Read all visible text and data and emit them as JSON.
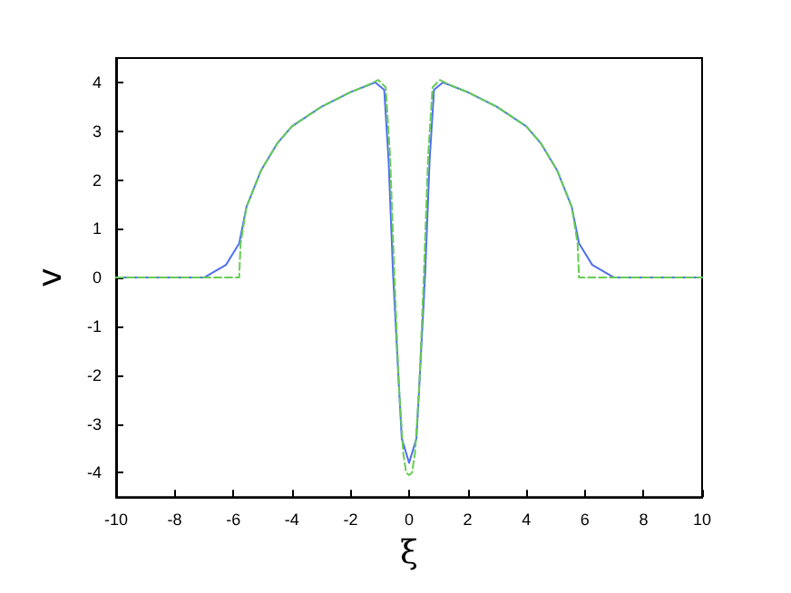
{
  "chart_data": {
    "type": "line",
    "xlabel": "ξ",
    "ylabel": "v",
    "xlim": [
      -10,
      10
    ],
    "xticks": [
      -10,
      -8,
      -6,
      -4,
      -2,
      0,
      2,
      4,
      6,
      8,
      10
    ],
    "ylim": [
      -4.5,
      4.5
    ],
    "yticks": [
      -4,
      -3,
      -2,
      -1,
      0,
      1,
      2,
      3,
      4
    ],
    "grid": false,
    "marker": "none",
    "series": [
      {
        "color": "#4f6ff0",
        "line_style": "solid",
        "x": [
          -10,
          -7,
          -6.85,
          -6.25,
          -5.8,
          -5.55,
          -5.05,
          -4.5,
          -4,
          -3,
          -2,
          -1.5,
          -1.15,
          -0.85,
          -0.7,
          -0.55,
          -0.35,
          -0.25,
          0,
          0.25,
          0.35,
          0.55,
          0.7,
          0.85,
          1.15,
          1.5,
          2,
          3,
          4,
          4.5,
          5.05,
          5.55,
          5.8,
          6.25,
          6.85,
          7,
          10
        ],
        "values": [
          0,
          0,
          0.05,
          0.26,
          0.7,
          1.45,
          2.2,
          2.75,
          3.1,
          3.5,
          3.8,
          3.92,
          4.0,
          3.85,
          2.4,
          0.1,
          -2.2,
          -3.3,
          -3.8,
          -3.3,
          -2.2,
          0.1,
          2.4,
          3.85,
          4.0,
          3.92,
          3.8,
          3.5,
          3.1,
          2.75,
          2.2,
          1.45,
          0.7,
          0.26,
          0.05,
          0,
          0
        ]
      },
      {
        "color": "#66cc55",
        "line_style": "dashed",
        "x": [
          -10,
          -5.8,
          -5.75,
          -5.55,
          -5.05,
          -4.5,
          -4,
          -3,
          -2,
          -1.5,
          -1.05,
          -0.8,
          -0.65,
          -0.5,
          -0.35,
          -0.2,
          -0.1,
          0,
          0.1,
          0.2,
          0.35,
          0.5,
          0.65,
          0.8,
          1.05,
          1.5,
          2,
          3,
          4,
          4.5,
          5.05,
          5.55,
          5.75,
          5.8,
          10
        ],
        "values": [
          0,
          0,
          0.7,
          1.45,
          2.2,
          2.75,
          3.1,
          3.5,
          3.8,
          3.92,
          4.05,
          3.9,
          2.5,
          0,
          -2.2,
          -3.6,
          -4.0,
          -4.05,
          -4.0,
          -3.6,
          -2.2,
          0,
          2.5,
          3.9,
          4.05,
          3.92,
          3.8,
          3.5,
          3.1,
          2.75,
          2.2,
          1.45,
          0.7,
          0,
          0
        ]
      }
    ]
  }
}
